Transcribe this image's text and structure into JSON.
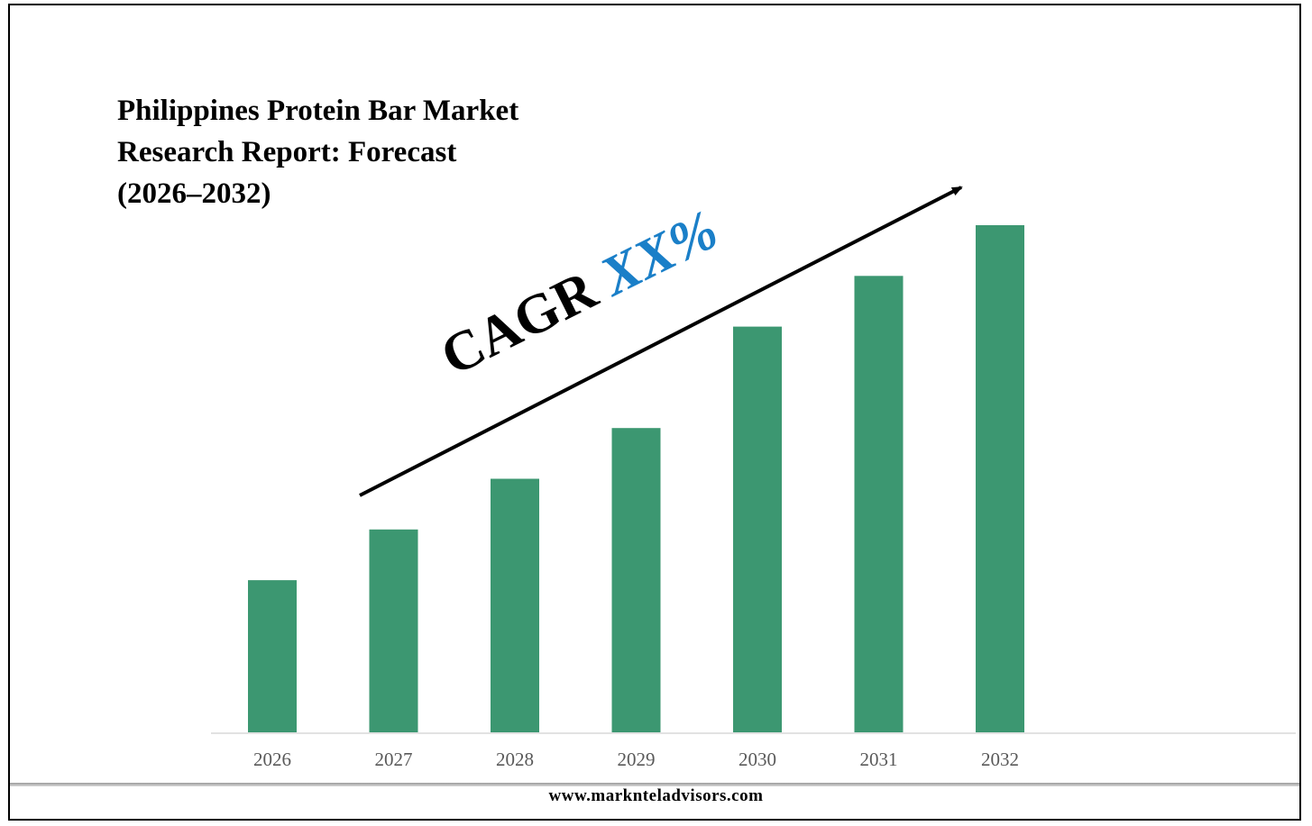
{
  "chart_data": {
    "type": "bar",
    "title": "Philippines Protein Bar Market\nResearch Report: Forecast\n(2026–2032)",
    "categories": [
      "2026",
      "2027",
      "2028",
      "2029",
      "2030",
      "2031",
      "2032"
    ],
    "values": [
      30,
      40,
      50,
      60,
      80,
      90,
      100
    ],
    "ylim": [
      0,
      100
    ],
    "grid": false,
    "legend": "none",
    "bar_color": "#3c9771",
    "annotation": {
      "prefix": "CAGR ",
      "value": "XX%",
      "value_color": "#1a7fc8",
      "arrow": "upward trend arrow"
    }
  },
  "footer": {
    "url": "www.marknteladvisors.com"
  }
}
